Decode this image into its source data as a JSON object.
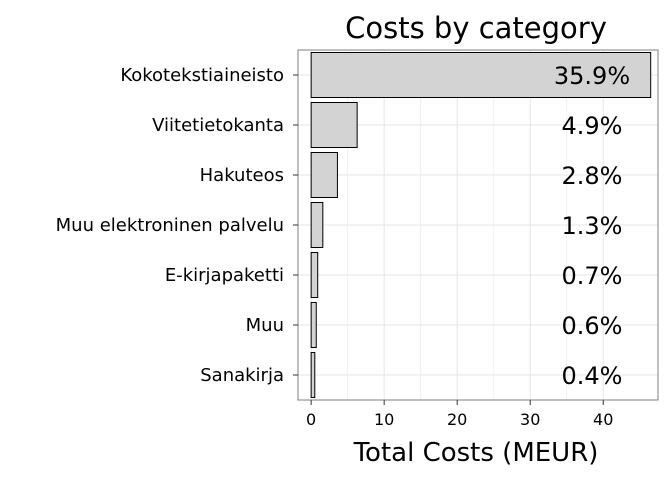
{
  "chart_data": {
    "type": "bar",
    "orientation": "horizontal",
    "title": "Costs by category",
    "xlabel": "Total Costs (MEUR)",
    "ylabel": "",
    "xlim": [
      -1.8,
      47.5
    ],
    "xticks": [
      0,
      10,
      20,
      30,
      40
    ],
    "grid": true,
    "categories": [
      "Kokotekstiaineisto",
      "Viitetietokanta",
      "Hakuteos",
      "Muu elektroninen palvelu",
      "E-kirjapaketti",
      "Muu",
      "Sanakirja"
    ],
    "values": [
      46.5,
      6.3,
      3.6,
      1.6,
      0.9,
      0.7,
      0.5
    ],
    "percent_labels": [
      "35.9%",
      "4.9%",
      "2.8%",
      "1.3%",
      "0.7%",
      "0.6%",
      "0.4%"
    ],
    "colors": {
      "bar_fill": "#d3d3d3",
      "bar_stroke": "#000000",
      "grid": "#e5e5e5",
      "panel_border": "#7f7f7f"
    }
  }
}
